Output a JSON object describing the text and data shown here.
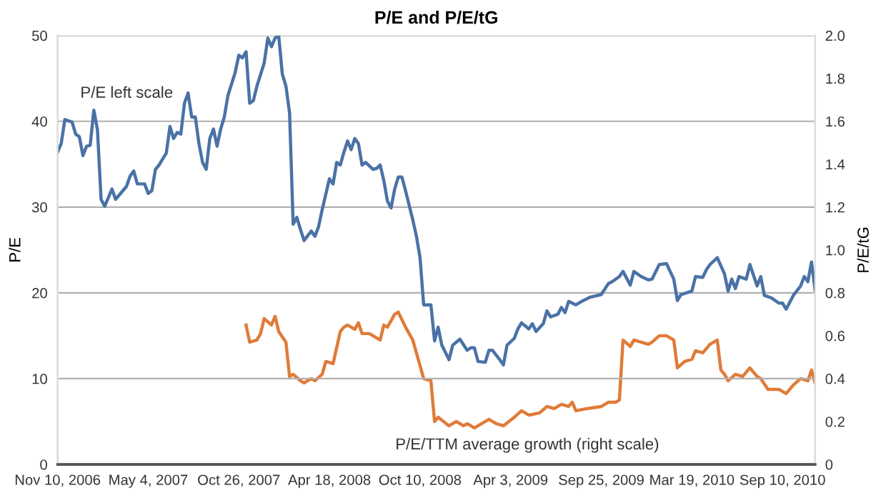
{
  "chart_data": {
    "type": "line",
    "title": "P/E and P/E/tG",
    "ylabel": "P/E",
    "y2label": "P/E/tG",
    "xlim": [
      "2006-11-10",
      "2010-11-12"
    ],
    "xticks": [
      {
        "value": "2006-11-10",
        "label": "Nov 10, 2006"
      },
      {
        "value": "2007-05-04",
        "label": "May 4, 2007"
      },
      {
        "value": "2007-10-26",
        "label": "Oct 26, 2007"
      },
      {
        "value": "2008-04-18",
        "label": "Apr 18, 2008"
      },
      {
        "value": "2008-10-10",
        "label": "Oct 10, 2008"
      },
      {
        "value": "2009-04-03",
        "label": "Apr 3, 2009"
      },
      {
        "value": "2009-09-25",
        "label": "Sep 25, 2009"
      },
      {
        "value": "2010-03-19",
        "label": "Mar 19, 2010"
      },
      {
        "value": "2010-09-10",
        "label": "Sep 10, 2010"
      }
    ],
    "ylim": [
      0,
      50
    ],
    "yticks": [
      0,
      10,
      20,
      30,
      40,
      50
    ],
    "y2lim": [
      0,
      2
    ],
    "y2ticks": [
      0,
      0.2,
      0.4,
      0.6,
      0.8,
      {
        "value": 1,
        "label": "1.0"
      },
      1.2,
      1.4,
      1.6,
      1.8,
      {
        "value": 2,
        "label": "2.0"
      }
    ],
    "grid": "y",
    "marker": "none",
    "line_style": "solid",
    "series": [
      {
        "name": "P/E left scale",
        "color": "#4a72a6",
        "x": [
          "2006-11-10",
          "2006-11-17",
          "2006-11-24",
          "2006-12-08",
          "2006-12-15",
          "2006-12-22",
          "2006-12-29",
          "2007-01-05",
          "2007-01-12",
          "2007-01-19",
          "2007-01-26",
          "2007-02-02",
          "2007-02-09",
          "2007-02-23",
          "2007-03-02",
          "2007-03-23",
          "2007-03-30",
          "2007-04-06",
          "2007-04-13",
          "2007-04-27",
          "2007-05-04",
          "2007-05-11",
          "2007-05-18",
          "2007-05-25",
          "2007-06-08",
          "2007-06-15",
          "2007-06-22",
          "2007-06-29",
          "2007-07-06",
          "2007-07-13",
          "2007-07-20",
          "2007-07-27",
          "2007-08-03",
          "2007-08-10",
          "2007-08-17",
          "2007-08-24",
          "2007-08-31",
          "2007-09-07",
          "2007-09-14",
          "2007-09-21",
          "2007-09-28",
          "2007-10-05",
          "2007-10-19",
          "2007-10-26",
          "2007-11-02",
          "2007-11-09",
          "2007-11-16",
          "2007-11-23",
          "2007-11-30",
          "2007-12-14",
          "2007-12-21",
          "2007-12-28",
          "2008-01-04",
          "2008-01-11",
          "2008-01-18",
          "2008-01-25",
          "2008-02-01",
          "2008-02-08",
          "2008-02-15",
          "2008-02-22",
          "2008-02-29",
          "2008-03-14",
          "2008-03-21",
          "2008-03-28",
          "2008-04-04",
          "2008-04-18",
          "2008-04-25",
          "2008-05-02",
          "2008-05-09",
          "2008-05-16",
          "2008-05-23",
          "2008-05-30",
          "2008-06-06",
          "2008-06-13",
          "2008-06-20",
          "2008-06-27",
          "2008-07-11",
          "2008-07-18",
          "2008-07-25",
          "2008-08-01",
          "2008-08-08",
          "2008-08-15",
          "2008-08-22",
          "2008-08-29",
          "2008-09-05",
          "2008-09-12",
          "2008-09-26",
          "2008-10-03",
          "2008-10-10",
          "2008-10-17",
          "2008-10-31",
          "2008-11-07",
          "2008-11-14",
          "2008-11-21",
          "2008-12-05",
          "2008-12-12",
          "2008-12-26",
          "2009-01-09",
          "2009-01-16",
          "2009-01-23",
          "2009-01-30",
          "2009-02-13",
          "2009-02-20",
          "2009-02-27",
          "2009-03-13",
          "2009-03-20",
          "2009-03-27",
          "2009-04-10",
          "2009-04-17",
          "2009-04-24",
          "2009-05-08",
          "2009-05-15",
          "2009-05-22",
          "2009-06-05",
          "2009-06-12",
          "2009-06-19",
          "2009-07-03",
          "2009-07-10",
          "2009-07-17",
          "2009-07-24",
          "2009-08-07",
          "2009-08-21",
          "2009-09-04",
          "2009-09-25",
          "2009-10-09",
          "2009-10-16",
          "2009-10-30",
          "2009-11-06",
          "2009-11-20",
          "2009-11-27",
          "2009-12-11",
          "2009-12-25",
          "2010-01-01",
          "2010-01-15",
          "2010-01-29",
          "2010-02-05",
          "2010-02-12",
          "2010-02-19",
          "2010-02-26",
          "2010-03-19",
          "2010-03-26",
          "2010-04-09",
          "2010-04-16",
          "2010-04-23",
          "2010-05-07",
          "2010-05-21",
          "2010-05-28",
          "2010-06-04",
          "2010-06-11",
          "2010-06-18",
          "2010-07-02",
          "2010-07-09",
          "2010-07-23",
          "2010-07-30",
          "2010-08-06",
          "2010-08-20",
          "2010-09-03",
          "2010-09-10",
          "2010-09-17",
          "2010-10-01",
          "2010-10-15",
          "2010-10-22",
          "2010-10-29",
          "2010-11-05",
          "2010-11-12"
        ],
        "values": [
          36.4,
          37.4,
          40.2,
          39.9,
          38.5,
          38.2,
          36,
          37.1,
          37.2,
          41.3,
          39,
          30.9,
          30.1,
          32.1,
          30.9,
          32.4,
          33.6,
          34.2,
          32.7,
          32.7,
          31.6,
          31.9,
          34.4,
          34.9,
          36.3,
          39.4,
          38,
          38.7,
          38.5,
          42.1,
          43.3,
          40.5,
          40.5,
          37.4,
          35.2,
          34.4,
          38,
          39.1,
          37.1,
          39.1,
          40.5,
          43,
          45.7,
          47.7,
          47.4,
          48.1,
          42.1,
          42.4,
          44.1,
          46.8,
          49.7,
          48.7,
          49.7,
          50,
          45.5,
          44.1,
          41,
          28,
          28.8,
          27.4,
          26.1,
          27.2,
          26.6,
          27.7,
          29.7,
          33.3,
          32.7,
          35.2,
          34.9,
          36.4,
          37.7,
          36.7,
          38,
          37.4,
          34.9,
          35.2,
          34.4,
          34.5,
          34.9,
          33.1,
          30.7,
          29.9,
          32.1,
          33.5,
          33.5,
          31.9,
          28.5,
          26.6,
          24.1,
          18.6,
          18.6,
          14.4,
          16,
          13.9,
          12.2,
          13.9,
          14.6,
          13.3,
          13.6,
          13.6,
          12,
          11.9,
          13.3,
          13.3,
          12.2,
          11.6,
          13.9,
          14.7,
          15.8,
          16.5,
          15.8,
          16.4,
          15.5,
          16.4,
          17.9,
          17.2,
          17.5,
          18.3,
          17.7,
          19,
          18.6,
          19.1,
          19.5,
          19.8,
          21.1,
          21.3,
          21.9,
          22.5,
          20.9,
          22.5,
          21.9,
          21.5,
          21.6,
          23.3,
          23.4,
          22.5,
          21.6,
          19.1,
          19.8,
          20.2,
          21.9,
          21.8,
          22.7,
          23.3,
          24.1,
          22.2,
          20.2,
          21.6,
          20.5,
          21.9,
          21.6,
          23.3,
          20.8,
          21.9,
          19.7,
          19.4,
          18.8,
          18.8,
          18.1,
          19.7,
          20.8,
          21.9,
          21.3,
          23.6,
          20.3
        ]
      },
      {
        "name": "P/E/TTM average growth (right scale)",
        "color": "#e07b39",
        "axis": "y2",
        "x": [
          "2007-11-09",
          "2007-11-16",
          "2007-11-30",
          "2007-12-07",
          "2007-12-14",
          "2007-12-28",
          "2008-01-04",
          "2008-01-11",
          "2008-01-25",
          "2008-02-01",
          "2008-02-08",
          "2008-02-22",
          "2008-02-29",
          "2008-03-14",
          "2008-03-21",
          "2008-04-04",
          "2008-04-11",
          "2008-04-25",
          "2008-05-09",
          "2008-05-16",
          "2008-05-23",
          "2008-06-06",
          "2008-06-13",
          "2008-06-20",
          "2008-07-04",
          "2008-07-18",
          "2008-07-25",
          "2008-08-01",
          "2008-08-08",
          "2008-08-22",
          "2008-08-29",
          "2008-09-12",
          "2008-09-26",
          "2008-10-03",
          "2008-10-17",
          "2008-10-31",
          "2008-11-07",
          "2008-11-14",
          "2008-12-05",
          "2008-12-19",
          "2009-01-02",
          "2009-01-09",
          "2009-01-23",
          "2009-02-06",
          "2009-02-20",
          "2009-03-06",
          "2009-03-20",
          "2009-04-10",
          "2009-04-24",
          "2009-05-08",
          "2009-05-29",
          "2009-06-12",
          "2009-06-26",
          "2009-07-10",
          "2009-07-24",
          "2009-07-31",
          "2009-08-07",
          "2009-08-28",
          "2009-09-25",
          "2009-10-09",
          "2009-10-23",
          "2009-10-30",
          "2009-11-06",
          "2009-11-20",
          "2009-11-27",
          "2009-12-11",
          "2009-12-25",
          "2010-01-01",
          "2010-01-15",
          "2010-01-29",
          "2010-02-12",
          "2010-02-19",
          "2010-03-05",
          "2010-03-19",
          "2010-03-26",
          "2010-04-09",
          "2010-04-23",
          "2010-05-07",
          "2010-05-14",
          "2010-05-21",
          "2010-05-28",
          "2010-06-11",
          "2010-06-25",
          "2010-07-09",
          "2010-07-23",
          "2010-07-30",
          "2010-08-13",
          "2010-09-03",
          "2010-09-17",
          "2010-10-01",
          "2010-10-15",
          "2010-10-29",
          "2010-11-05",
          "2010-11-12"
        ],
        "values": [
          0.65,
          0.57,
          0.58,
          0.61,
          0.68,
          0.65,
          0.69,
          0.62,
          0.57,
          0.41,
          0.42,
          0.39,
          0.38,
          0.4,
          0.39,
          0.42,
          0.48,
          0.47,
          0.62,
          0.64,
          0.65,
          0.63,
          0.66,
          0.61,
          0.61,
          0.59,
          0.58,
          0.65,
          0.64,
          0.7,
          0.71,
          0.64,
          0.58,
          0.52,
          0.4,
          0.39,
          0.2,
          0.22,
          0.18,
          0.2,
          0.18,
          0.19,
          0.17,
          0.19,
          0.21,
          0.19,
          0.18,
          0.22,
          0.25,
          0.23,
          0.24,
          0.27,
          0.26,
          0.28,
          0.27,
          0.29,
          0.25,
          0.26,
          0.27,
          0.29,
          0.29,
          0.3,
          0.58,
          0.55,
          0.58,
          0.57,
          0.56,
          0.57,
          0.6,
          0.6,
          0.58,
          0.45,
          0.48,
          0.49,
          0.53,
          0.52,
          0.56,
          0.58,
          0.44,
          0.42,
          0.39,
          0.42,
          0.41,
          0.45,
          0.41,
          0.4,
          0.35,
          0.35,
          0.33,
          0.37,
          0.4,
          0.39,
          0.44,
          0.38
        ]
      }
    ]
  }
}
